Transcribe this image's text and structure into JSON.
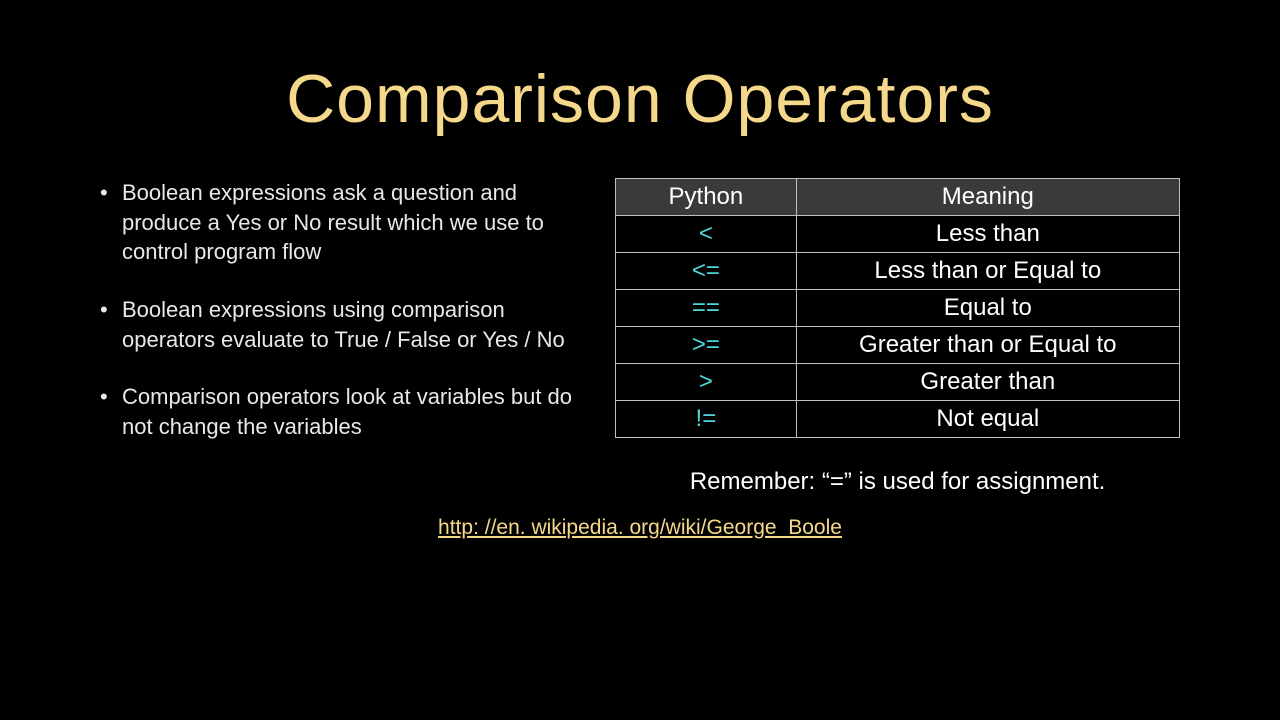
{
  "slide": {
    "title": "Comparison Operators",
    "title_color": "#f5d88a",
    "title_fontsize": 68,
    "background_color": "#000000",
    "text_color": "#ffffff",
    "bullets": [
      "Boolean expressions ask a question and produce a Yes or No result which we use to control program flow",
      "Boolean expressions using comparison operators evaluate to True / False or Yes / No",
      "Comparison operators look at variables but do not change the variables"
    ],
    "bullet_fontsize": 22,
    "table": {
      "header_bg": "#3a3a3a",
      "border_color": "#bfbfbf",
      "python_color": "#4fd7d7",
      "meaning_color": "#ffffff",
      "cell_fontsize": 24,
      "columns": [
        "Python",
        "Meaning"
      ],
      "rows": [
        {
          "py": "<",
          "meaning": "Less than"
        },
        {
          "py": "<=",
          "meaning": "Less than or Equal to"
        },
        {
          "py": "==",
          "meaning": "Equal to"
        },
        {
          "py": ">=",
          "meaning": "Greater than or Equal to"
        },
        {
          "py": ">",
          "meaning": "Greater than"
        },
        {
          "py": "!=",
          "meaning": "Not equal"
        }
      ]
    },
    "remember": "Remember:  “=” is used for assignment.",
    "link": "http: //en. wikipedia. org/wiki/George_Boole",
    "link_color": "#f5d88a"
  }
}
